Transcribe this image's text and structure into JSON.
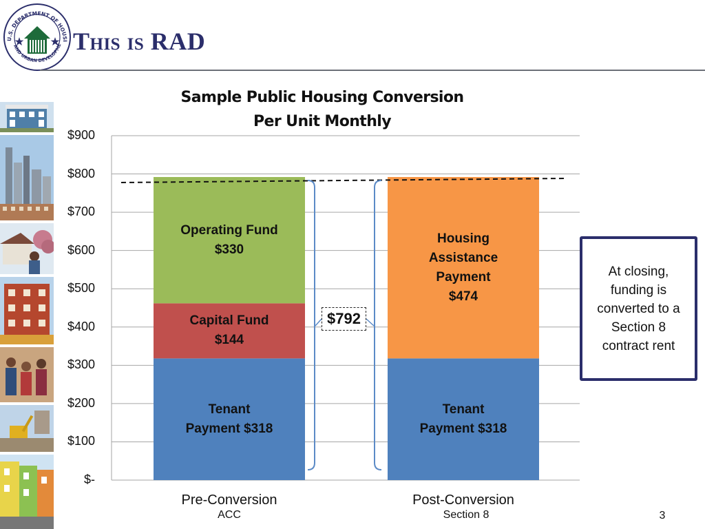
{
  "slide": {
    "title": "This is RAD",
    "page_number": "3",
    "logo_text": "U.S. DEPARTMENT OF HOUSING AND URBAN DEVELOPMENT"
  },
  "callout": {
    "text": "At closing,\nfunding is\nconverted to a\nSection 8\ncontract rent"
  },
  "colors": {
    "tenant_payment": "#4f81bd",
    "capital_fund": "#c0504d",
    "operating_fund": "#9bbb59",
    "housing_assistance_payment": "#f79646",
    "title_navy": "#2b2e6b",
    "bracket": "#5b8ac6"
  },
  "photos": [
    "townhouse",
    "city-skyline",
    "porch-and-tree-with-resident",
    "brick-apartment-building",
    "family-portrait",
    "construction-excavator",
    "colorful-row-houses"
  ],
  "chart_data": {
    "type": "bar",
    "stacked": true,
    "title": "Sample Public Housing Conversion\nPer Unit Monthly",
    "categories": [
      "Pre-Conversion",
      "Post-Conversion"
    ],
    "category_sublabels": [
      "ACC",
      "Section 8"
    ],
    "ylim": [
      0,
      900
    ],
    "yticks": [
      0,
      100,
      200,
      300,
      400,
      500,
      600,
      700,
      800,
      900
    ],
    "ytick_labels": [
      "$-",
      "$100",
      "$200",
      "$300",
      "$400",
      "$500",
      "$600",
      "$700",
      "$800",
      "$900"
    ],
    "grid": true,
    "series": [
      {
        "name": "Tenant Payment",
        "values": [
          318,
          318
        ],
        "labels": [
          "Tenant\nPayment  $318",
          "Tenant\nPayment  $318"
        ],
        "color": "#4f81bd"
      },
      {
        "name": "Capital Fund",
        "values": [
          144,
          0
        ],
        "labels": [
          "Capital Fund\n$144",
          ""
        ],
        "color": "#c0504d"
      },
      {
        "name": "Operating Fund",
        "values": [
          330,
          0
        ],
        "labels": [
          "Operating Fund\n$330",
          ""
        ],
        "color": "#9bbb59"
      },
      {
        "name": "Housing Assistance Payment",
        "values": [
          0,
          474
        ],
        "labels": [
          "",
          "Housing\nAssistance\nPayment\n$474"
        ],
        "color": "#f79646"
      }
    ],
    "total_label": "$792",
    "reference_line": 792
  }
}
